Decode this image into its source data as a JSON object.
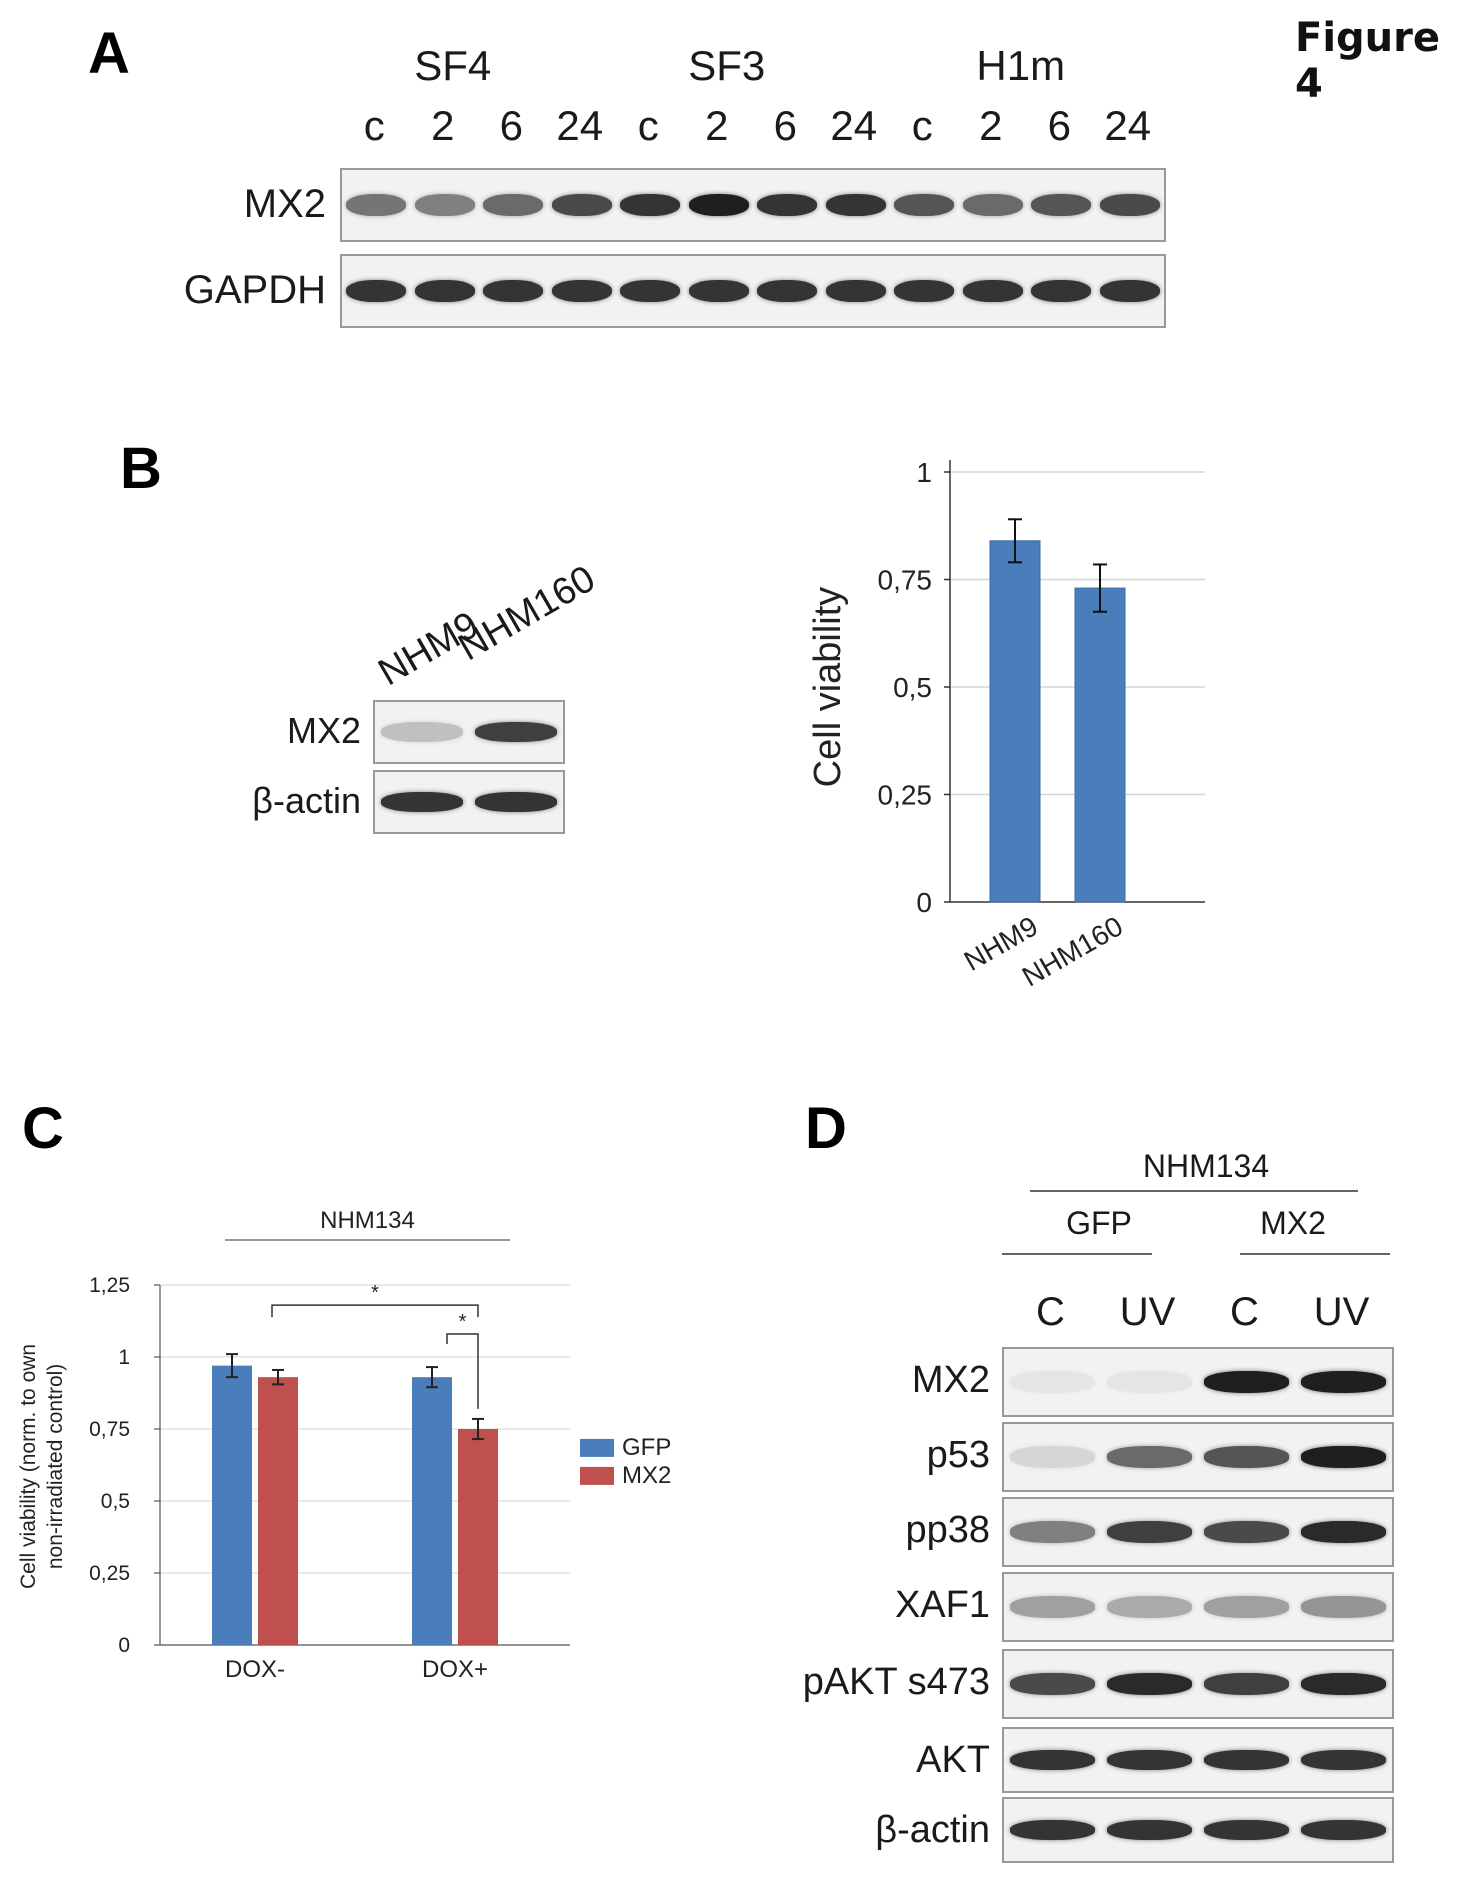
{
  "figure_title": "Figure 4",
  "panels": {
    "A": {
      "letter": "A",
      "groups": [
        "SF4",
        "SF3",
        "H1m"
      ],
      "timepoints": [
        "c",
        "2",
        "6",
        "24",
        "c",
        "2",
        "6",
        "24",
        "c",
        "2",
        "6",
        "24"
      ],
      "blots": [
        {
          "label": "MX2",
          "intensity": [
            0.55,
            0.5,
            0.6,
            0.75,
            0.85,
            0.95,
            0.85,
            0.85,
            0.7,
            0.6,
            0.7,
            0.75
          ]
        },
        {
          "label": "GAPDH",
          "intensity": [
            0.85,
            0.85,
            0.85,
            0.85,
            0.85,
            0.85,
            0.85,
            0.85,
            0.85,
            0.85,
            0.85,
            0.85
          ]
        }
      ]
    },
    "B": {
      "letter": "B",
      "lanes": [
        "NHM9",
        "NHM160"
      ],
      "blots": [
        {
          "label": "MX2",
          "intensity": [
            0.2,
            0.8
          ]
        },
        {
          "label": "β-actin",
          "intensity": [
            0.85,
            0.85
          ]
        }
      ]
    },
    "C": {
      "letter": "C",
      "line_label": "NHM134",
      "significance": [
        "*",
        "*"
      ],
      "legend": [
        {
          "name": "GFP",
          "color": "#4a7ebb"
        },
        {
          "name": "MX2",
          "color": "#c0504d"
        }
      ]
    },
    "D": {
      "letter": "D",
      "top_label": "NHM134",
      "sub_labels": [
        "GFP",
        "MX2"
      ],
      "lanes": [
        "C",
        "UV",
        "C",
        "UV"
      ],
      "blots": [
        {
          "label": "MX2",
          "intensity": [
            0.03,
            0.03,
            0.95,
            0.95
          ]
        },
        {
          "label": "p53",
          "intensity": [
            0.1,
            0.6,
            0.7,
            0.95
          ]
        },
        {
          "label": "pp38",
          "intensity": [
            0.5,
            0.8,
            0.75,
            0.9
          ]
        },
        {
          "label": "XAF1",
          "intensity": [
            0.35,
            0.3,
            0.35,
            0.4
          ]
        },
        {
          "label": "pAKT s473",
          "intensity": [
            0.75,
            0.9,
            0.8,
            0.9
          ]
        },
        {
          "label": "AKT",
          "intensity": [
            0.85,
            0.85,
            0.85,
            0.85
          ]
        },
        {
          "label": "β-actin",
          "intensity": [
            0.85,
            0.85,
            0.85,
            0.85
          ]
        }
      ]
    }
  },
  "chart_data": [
    {
      "type": "bar",
      "ylabel": "Cell viability",
      "categories": [
        "NHM9",
        "NHM160"
      ],
      "values": [
        0.84,
        0.73
      ],
      "errors": [
        0.05,
        0.055
      ],
      "ylim": [
        0,
        1
      ],
      "yticks": [
        "0",
        "0,25",
        "0,5",
        "0,75",
        "1"
      ],
      "tick_values": [
        0,
        0.25,
        0.5,
        0.75,
        1
      ],
      "grid": true,
      "color": "#4a7ebb"
    },
    {
      "type": "bar",
      "ylabel": "Cell viability (norm. to own non-irradiated control)",
      "ylabel_lines": [
        "Cell viability (norm. to own",
        "non-irradiated control)"
      ],
      "categories": [
        "DOX-",
        "DOX+"
      ],
      "series": [
        {
          "name": "GFP",
          "values": [
            0.97,
            0.93
          ],
          "errors": [
            0.04,
            0.035
          ],
          "color": "#4a7ebb"
        },
        {
          "name": "MX2",
          "values": [
            0.93,
            0.75
          ],
          "errors": [
            0.025,
            0.035
          ],
          "color": "#c0504d"
        }
      ],
      "ylim": [
        0,
        1.25
      ],
      "yticks": [
        "0",
        "0,25",
        "0,5",
        "0,75",
        "1",
        "1,25"
      ],
      "tick_values": [
        0,
        0.25,
        0.5,
        0.75,
        1,
        1.25
      ],
      "grid": true,
      "legend_position": "right"
    }
  ]
}
